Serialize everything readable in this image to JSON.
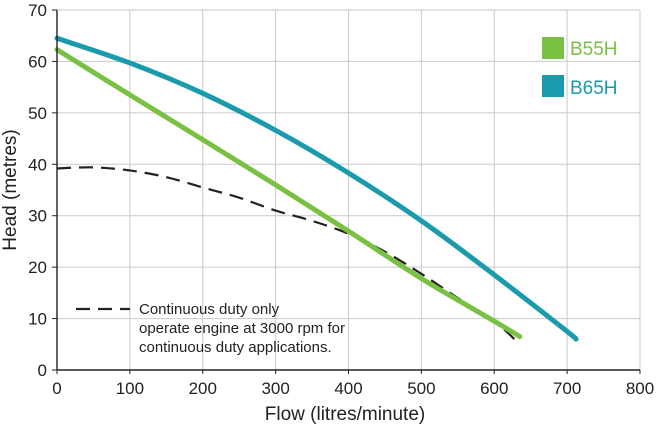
{
  "chart_data": {
    "type": "line",
    "title": "",
    "xlabel": "Flow (litres/minute)",
    "ylabel": "Head (metres)",
    "xlim": [
      0,
      800
    ],
    "ylim": [
      0,
      70
    ],
    "xticks": [
      0,
      100,
      200,
      300,
      400,
      500,
      600,
      700,
      800
    ],
    "yticks": [
      0,
      10,
      20,
      30,
      40,
      50,
      60,
      70
    ],
    "grid": true,
    "legend_position": "top-right",
    "series": [
      {
        "name": "B55H",
        "color": "#7ac143",
        "style": "solid",
        "x": [
          0,
          100,
          200,
          300,
          400,
          500,
          600,
          635
        ],
        "y": [
          62.3,
          53.5,
          44.8,
          36.0,
          27.0,
          17.8,
          9.5,
          6.5
        ]
      },
      {
        "name": "B65H",
        "color": "#1a9bab",
        "style": "solid",
        "x": [
          0,
          100,
          200,
          300,
          400,
          500,
          600,
          700,
          712
        ],
        "y": [
          64.5,
          59.7,
          53.8,
          46.6,
          38.3,
          29.0,
          18.5,
          7.5,
          6.0
        ]
      },
      {
        "name": "Continuous duty only",
        "color": "#222222",
        "style": "dashed",
        "x": [
          0,
          50,
          100,
          150,
          200,
          250,
          300,
          350,
          400,
          450,
          500,
          550,
          600,
          635
        ],
        "y": [
          39.2,
          39.4,
          38.8,
          37.5,
          35.5,
          33.5,
          31.0,
          29.0,
          26.5,
          23.0,
          18.7,
          14.0,
          9.5,
          5.0
        ]
      }
    ],
    "legend": [
      {
        "label": "B55H",
        "color": "#7ac143"
      },
      {
        "label": "B65H",
        "color": "#1a9bab"
      }
    ],
    "annotation": {
      "lines": [
        "Continuous duty only",
        "operate engine at 3000 rpm for",
        "continuous duty applications."
      ]
    }
  }
}
